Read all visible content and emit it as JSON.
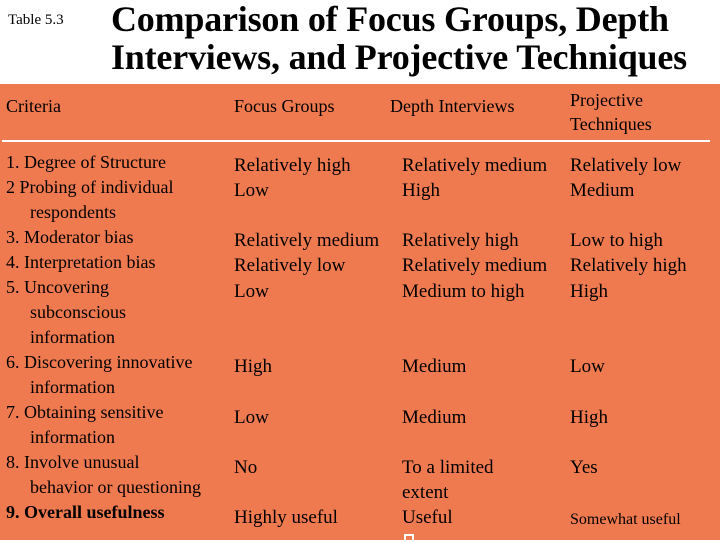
{
  "table_label": "Table 5.3",
  "title_line1": "Comparison of Focus Groups, Depth",
  "title_line2": "Interviews, and Projective Techniques",
  "colors": {
    "panel": "#f07a50",
    "rule": "#ffffff",
    "text": "#000000"
  },
  "headers": {
    "criteria": "Criteria",
    "focus": "Focus Groups",
    "depth": "Depth Interviews",
    "projective_1": "Projective",
    "projective_2": "Techniques"
  },
  "rows": [
    {
      "criterion": [
        "1. Degree of Structure"
      ],
      "focus": "Relatively high",
      "depth": "Relatively medium",
      "projective": "Relatively low"
    },
    {
      "criterion": [
        "2 Probing of individual",
        "respondents"
      ],
      "focus": "Low",
      "depth": "High",
      "projective": "Medium"
    },
    {
      "criterion": [
        "3. Moderator bias"
      ],
      "focus": "Relatively medium",
      "depth": "Relatively high",
      "projective": "Low to high"
    },
    {
      "criterion": [
        "4. Interpretation bias"
      ],
      "focus": "Relatively low",
      "depth": "Relatively medium",
      "projective": "Relatively high"
    },
    {
      "criterion": [
        "5. Uncovering",
        "subconscious",
        "information"
      ],
      "focus": "Low",
      "depth": "Medium to high",
      "projective": "High"
    },
    {
      "criterion": [
        "6. Discovering innovative",
        "information"
      ],
      "focus": "High",
      "depth": "Medium",
      "projective": "Low"
    },
    {
      "criterion": [
        "7. Obtaining sensitive",
        "information"
      ],
      "focus": "Low",
      "depth": "Medium",
      "projective": "High"
    },
    {
      "criterion": [
        "8. Involve unusual",
        "behavior or questioning"
      ],
      "focus": "No",
      "depth": [
        "To a limited",
        "extent"
      ],
      "projective": "Yes"
    },
    {
      "criterion": [
        "9. Overall usefulness"
      ],
      "focus": "Highly useful",
      "depth": "Useful",
      "projective": "Somewhat useful"
    }
  ]
}
